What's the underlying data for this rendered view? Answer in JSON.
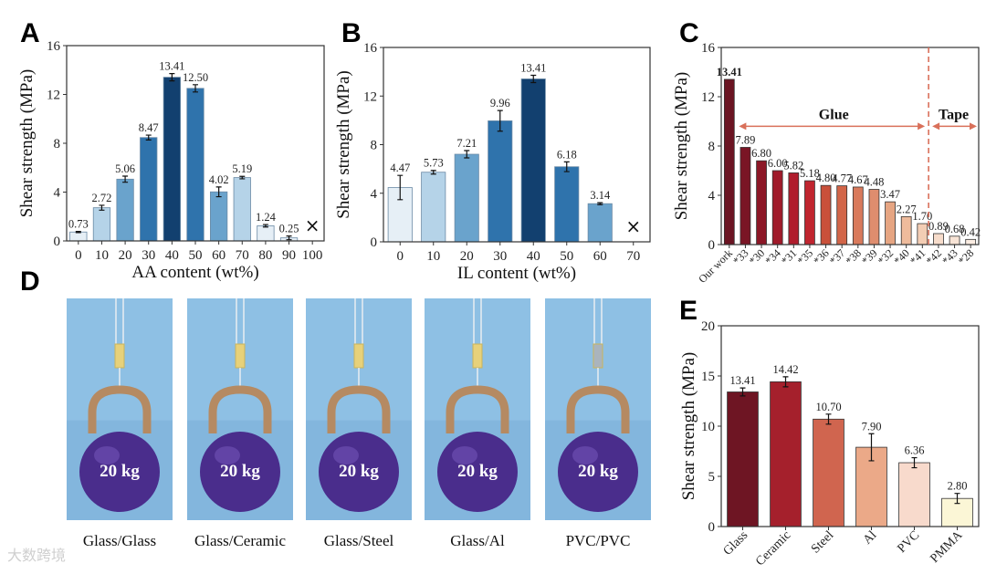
{
  "panels": {
    "A": "A",
    "B": "B",
    "C": "C",
    "D": "D",
    "E": "E"
  },
  "chart_data": [
    {
      "id": "A",
      "type": "bar",
      "xlabel": "AA content (wt%)",
      "ylabel": "Shear strength (MPa)",
      "ylim": [
        0,
        16
      ],
      "yticks": [
        0,
        4,
        8,
        12,
        16
      ],
      "categories": [
        "0",
        "10",
        "20",
        "30",
        "40",
        "50",
        "60",
        "70",
        "80",
        "90",
        "100"
      ],
      "values": [
        0.73,
        2.72,
        5.06,
        8.47,
        13.41,
        12.5,
        4.02,
        5.19,
        1.24,
        0.25,
        null
      ],
      "errors": [
        0.05,
        0.2,
        0.25,
        0.2,
        0.3,
        0.3,
        0.4,
        0.1,
        0.1,
        0.15,
        null
      ],
      "labels": [
        "0.73",
        "2.72",
        "5.06",
        "8.47",
        "13.41",
        "12.50",
        "4.02",
        "5.19",
        "1.24",
        "0.25",
        "×"
      ],
      "colors": [
        "#e6eff6",
        "#b5d3e8",
        "#6aa3cc",
        "#2f73ac",
        "#12406f",
        "#2f73ac",
        "#6aa3cc",
        "#b5d3e8",
        "#e6eff6",
        "#e6eff6",
        "#ffffff"
      ]
    },
    {
      "id": "B",
      "type": "bar",
      "xlabel": "IL content (wt%)",
      "ylabel": "Shear strength (MPa)",
      "ylim": [
        0,
        16
      ],
      "yticks": [
        0,
        4,
        8,
        12,
        16
      ],
      "categories": [
        "0",
        "10",
        "20",
        "30",
        "40",
        "50",
        "60",
        "70"
      ],
      "values": [
        4.47,
        5.73,
        7.21,
        9.96,
        13.41,
        6.18,
        3.14,
        null
      ],
      "errors": [
        1.0,
        0.15,
        0.3,
        0.85,
        0.3,
        0.4,
        0.08,
        null
      ],
      "labels": [
        "4.47",
        "5.73",
        "7.21",
        "9.96",
        "13.41",
        "6.18",
        "3.14",
        "×"
      ],
      "colors": [
        "#e6eff6",
        "#b5d3e8",
        "#6aa3cc",
        "#2f73ac",
        "#12406f",
        "#2f73ac",
        "#6aa3cc",
        "#ffffff"
      ]
    },
    {
      "id": "C",
      "type": "bar",
      "xlabel": "",
      "ylabel": "Shear strength (MPa)",
      "ylim": [
        0,
        16
      ],
      "yticks": [
        0,
        4,
        8,
        12,
        16
      ],
      "categories": [
        "Our work",
        "*33",
        "*30",
        "*34",
        "*31",
        "*35",
        "*36",
        "*37",
        "*38",
        "*39",
        "*32",
        "*40",
        "*41",
        "*42",
        "*43",
        "*28"
      ],
      "values": [
        13.41,
        7.89,
        6.8,
        6.0,
        5.82,
        5.18,
        4.8,
        4.77,
        4.67,
        4.48,
        3.47,
        2.27,
        1.7,
        0.89,
        0.68,
        0.42
      ],
      "labels": [
        "13.41",
        "7.89",
        "6.80",
        "6.00",
        "5.82",
        "5.18",
        "4.80",
        "4.77",
        "4.67",
        "4.48",
        "3.47",
        "2.27",
        "1.70",
        "0.89",
        "0.68",
        "0.42"
      ],
      "colors": [
        "#6b1422",
        "#7a1525",
        "#8c1726",
        "#a01a2a",
        "#b01c2c",
        "#c0252f",
        "#c9503a",
        "#d26548",
        "#d97a5c",
        "#df8d6e",
        "#e6a582",
        "#eebb9c",
        "#f3cdb4",
        "#f6dccb",
        "#f8e4d6",
        "#faece2"
      ],
      "annotations": [
        {
          "text": "Glue"
        },
        {
          "text": "Tape"
        }
      ],
      "accent": "#d9705a"
    },
    {
      "id": "E",
      "type": "bar",
      "xlabel": "",
      "ylabel": "Shear strength (MPa)",
      "ylim": [
        0,
        20
      ],
      "yticks": [
        0,
        5,
        10,
        15,
        20
      ],
      "categories": [
        "Glass",
        "Ceramic",
        "Steel",
        "Al",
        "PVC",
        "PMMA"
      ],
      "values": [
        13.41,
        14.42,
        10.7,
        7.9,
        6.36,
        2.8
      ],
      "errors": [
        0.4,
        0.5,
        0.5,
        1.35,
        0.5,
        0.5
      ],
      "labels": [
        "13.41",
        "14.42",
        "10.70",
        "7.90",
        "6.36",
        "2.80"
      ],
      "colors": [
        "#6e1523",
        "#a5202c",
        "#d0654f",
        "#eba988",
        "#f8dacc",
        "#fbf6d6"
      ]
    }
  ],
  "photos": {
    "weight_label": "20 kg",
    "captions": [
      "Glass/Glass",
      "Glass/Ceramic",
      "Glass/Steel",
      "Glass/Al",
      "PVC/PVC"
    ]
  },
  "watermark": "大数跨境"
}
